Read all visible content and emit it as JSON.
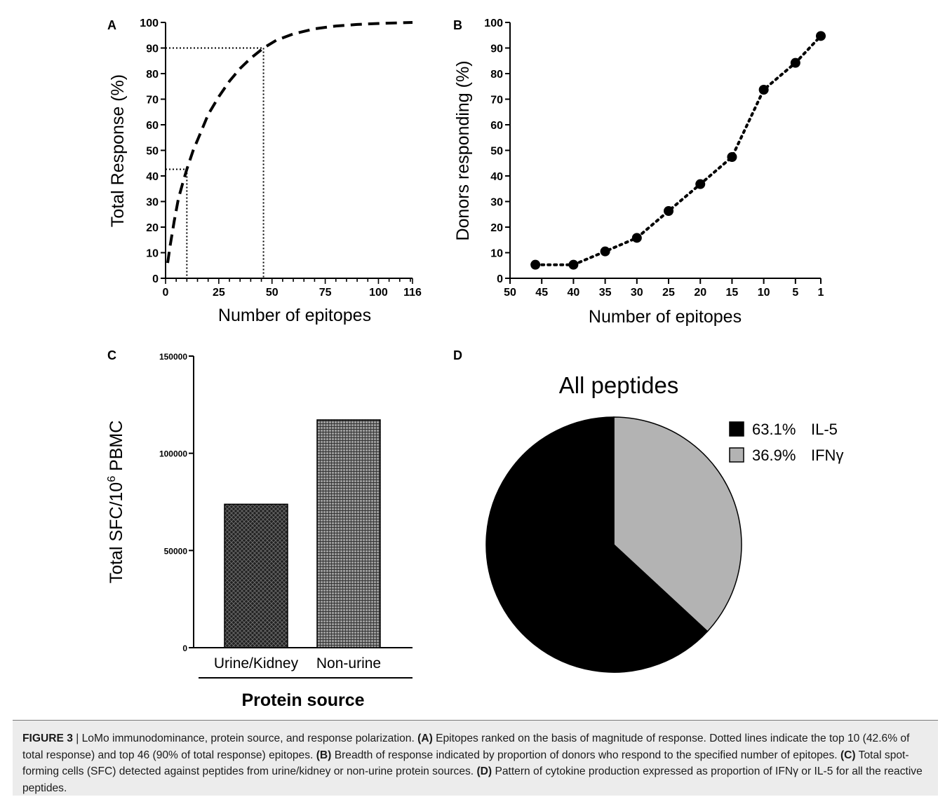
{
  "panels": {
    "a": "A",
    "b": "B",
    "c": "C",
    "d": "D"
  },
  "chart_data": [
    {
      "panel": "A",
      "type": "line",
      "title": "",
      "xlabel": "Number of epitopes",
      "ylabel": "Total Response (%)",
      "xlim": [
        0,
        116
      ],
      "ylim": [
        0,
        100
      ],
      "xticks": [
        "0",
        "25",
        "50",
        "75",
        "100",
        "116"
      ],
      "yticks": [
        "0",
        "10",
        "20",
        "30",
        "40",
        "50",
        "60",
        "70",
        "80",
        "90",
        "100"
      ],
      "series": [
        {
          "style": "dashed",
          "x": [
            1,
            2,
            4,
            6,
            8,
            10,
            13,
            16,
            20,
            25,
            30,
            35,
            40,
            46,
            52,
            60,
            70,
            80,
            90,
            100,
            116
          ],
          "y": [
            6,
            12,
            22,
            31,
            37,
            42.6,
            50,
            56,
            64,
            71,
            77,
            82,
            86,
            90,
            93,
            95.5,
            97.5,
            98.6,
            99.2,
            99.6,
            100
          ]
        }
      ],
      "reference_lines": [
        {
          "x": 10,
          "y": 42.6
        },
        {
          "x": 46,
          "y": 90
        }
      ]
    },
    {
      "panel": "B",
      "type": "scatter",
      "title": "",
      "xlabel": "Number of epitopes",
      "ylabel": "Donors responding (%)",
      "xlim": [
        50,
        1
      ],
      "ylim": [
        0,
        100
      ],
      "xticks": [
        "50",
        "45",
        "40",
        "35",
        "30",
        "25",
        "20",
        "15",
        "10",
        "5",
        "1"
      ],
      "yticks": [
        "0",
        "10",
        "20",
        "30",
        "40",
        "50",
        "60",
        "70",
        "80",
        "90",
        "100"
      ],
      "series": [
        {
          "style": "dotted-connected",
          "x": [
            46,
            40,
            35,
            30,
            25,
            20,
            15,
            10,
            5,
            1
          ],
          "y": [
            5.3,
            5.3,
            10.5,
            15.8,
            26.3,
            36.8,
            47.4,
            73.7,
            84.2,
            94.7
          ]
        }
      ]
    },
    {
      "panel": "C",
      "type": "bar",
      "title": "",
      "xlabel": "Protein source",
      "ylabel": "Total SFC/10",
      "ylabel_sup": "6",
      "ylabel_tail": " PBMC",
      "ylim": [
        0,
        150000
      ],
      "yticks": [
        "0",
        "50000",
        "100000",
        "150000"
      ],
      "categories": [
        "Urine/Kidney",
        "Non-urine"
      ],
      "values": [
        73800,
        117200
      ],
      "patterns": [
        "crosshatch-dark",
        "grid-gray"
      ]
    },
    {
      "panel": "D",
      "type": "pie",
      "title": "All peptides",
      "slices": [
        {
          "label": "IL-5",
          "percent_label": "63.1%",
          "value": 63.1,
          "color": "#000000"
        },
        {
          "label": "IFNγ",
          "percent_label": "36.9%",
          "value": 36.9,
          "color": "#b3b3b3"
        }
      ],
      "legend": "top-right"
    }
  ],
  "caption": {
    "fig": "FIGURE 3",
    "title": " | LoMo immunodominance, protein source, and response polarization. ",
    "a_tag": "(A)",
    "a_text": " Epitopes ranked on the basis of magnitude of response. Dotted lines indicate the top 10 (42.6% of total response) and top 46 (90% of total response) epitopes. ",
    "b_tag": "(B)",
    "b_text": " Breadth of response indicated by proportion of donors who respond to the specified number of epitopes. ",
    "c_tag": "(C)",
    "c_text": " Total spot-forming cells (SFC) detected against peptides from urine/kidney or non-urine protein sources. ",
    "d_tag": "(D)",
    "d_text": " Pattern of cytokine production expressed as proportion of IFNγ or IL-5 for all the reactive peptides."
  }
}
